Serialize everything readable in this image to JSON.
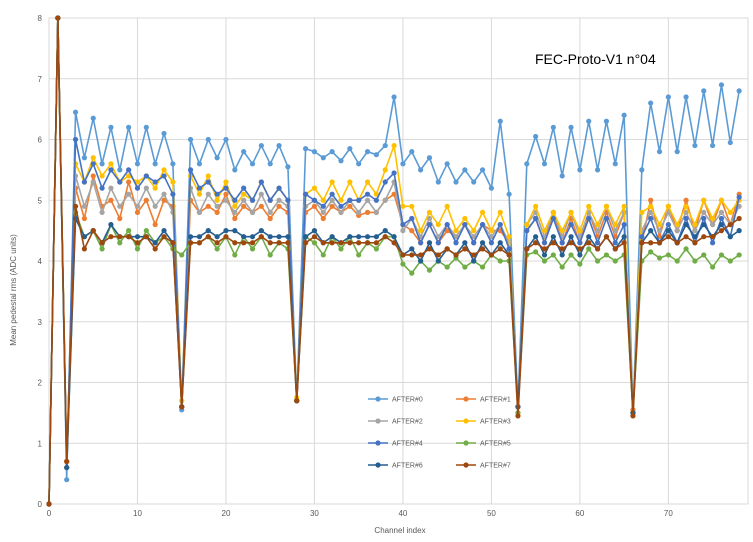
{
  "chart_data": {
    "type": "line",
    "title": "FEC-Proto-V1 n°04",
    "xlabel": "Channel index",
    "ylabel": "Mean pedestal rms (ADC units)",
    "xlim": [
      0,
      79
    ],
    "ylim": [
      0,
      8
    ],
    "xticks": [
      0,
      10,
      20,
      30,
      40,
      50,
      60,
      70
    ],
    "yticks": [
      0,
      1,
      2,
      3,
      4,
      5,
      6,
      7,
      8
    ],
    "grid": true,
    "legend_position": "bottom-center",
    "x": [
      0,
      1,
      2,
      3,
      4,
      5,
      6,
      7,
      8,
      9,
      10,
      11,
      12,
      13,
      14,
      15,
      16,
      17,
      18,
      19,
      20,
      21,
      22,
      23,
      24,
      25,
      26,
      27,
      28,
      29,
      30,
      31,
      32,
      33,
      34,
      35,
      36,
      37,
      38,
      39,
      40,
      41,
      42,
      43,
      44,
      45,
      46,
      47,
      48,
      49,
      50,
      51,
      52,
      53,
      54,
      55,
      56,
      57,
      58,
      59,
      60,
      61,
      62,
      63,
      64,
      65,
      66,
      67,
      68,
      69,
      70,
      71,
      72,
      73,
      74,
      75,
      76,
      77,
      78
    ],
    "series": [
      {
        "name": "AFTER#0",
        "color": "#5B9BD5",
        "values": [
          0,
          8,
          0.4,
          6.45,
          5.7,
          6.35,
          5.6,
          6.2,
          5.5,
          6.2,
          5.6,
          6.2,
          5.6,
          6.1,
          5.6,
          1.55,
          6.0,
          5.6,
          6.0,
          5.7,
          6.0,
          5.5,
          5.8,
          5.6,
          5.9,
          5.6,
          5.9,
          5.55,
          1.7,
          5.85,
          5.8,
          5.7,
          5.8,
          5.65,
          5.85,
          5.6,
          5.8,
          5.75,
          5.9,
          6.7,
          5.6,
          5.8,
          5.5,
          5.7,
          5.3,
          5.6,
          5.3,
          5.5,
          5.3,
          5.5,
          5.2,
          6.3,
          5.1,
          1.6,
          5.6,
          6.05,
          5.6,
          6.2,
          5.4,
          6.2,
          5.5,
          6.3,
          5.5,
          6.3,
          5.6,
          6.4,
          1.5,
          5.5,
          6.6,
          5.8,
          6.7,
          5.8,
          6.7,
          5.9,
          6.8,
          5.9,
          6.9,
          5.95,
          6.8
        ]
      },
      {
        "name": "AFTER#1",
        "color": "#ED7D31",
        "values": [
          0,
          8,
          0.7,
          5.2,
          4.7,
          5.4,
          4.9,
          5.0,
          4.7,
          5.3,
          4.8,
          5.0,
          4.6,
          5.0,
          4.9,
          1.6,
          5.0,
          4.8,
          4.9,
          4.8,
          5.1,
          4.7,
          4.9,
          4.8,
          4.9,
          4.7,
          4.9,
          4.8,
          1.7,
          4.8,
          4.9,
          4.7,
          4.9,
          4.8,
          4.9,
          4.75,
          4.8,
          4.8,
          5.0,
          5.1,
          4.6,
          4.5,
          4.3,
          4.6,
          4.3,
          4.5,
          4.4,
          4.6,
          4.3,
          4.6,
          4.5,
          4.5,
          4.3,
          1.6,
          4.5,
          4.7,
          4.3,
          4.8,
          4.3,
          4.7,
          4.3,
          4.8,
          4.4,
          4.8,
          4.4,
          4.8,
          1.55,
          4.3,
          5.0,
          4.4,
          4.9,
          4.5,
          5.0,
          4.5,
          5.0,
          4.6,
          5.0,
          4.6,
          5.1
        ]
      },
      {
        "name": "AFTER#2",
        "color": "#A5A5A5",
        "values": [
          0,
          8,
          0.7,
          5.4,
          4.9,
          5.3,
          4.8,
          5.2,
          4.9,
          5.1,
          4.9,
          5.2,
          4.9,
          5.1,
          4.8,
          1.6,
          5.2,
          4.8,
          5.1,
          4.9,
          5.0,
          4.8,
          5.0,
          4.8,
          5.1,
          4.8,
          5.0,
          4.9,
          1.7,
          4.9,
          5.0,
          4.8,
          5.0,
          4.8,
          5.0,
          4.8,
          5.0,
          4.8,
          5.0,
          5.3,
          4.5,
          4.7,
          4.4,
          4.7,
          4.4,
          4.6,
          4.4,
          4.6,
          4.4,
          4.6,
          4.4,
          4.6,
          4.3,
          1.6,
          4.6,
          4.8,
          4.4,
          4.8,
          4.4,
          4.8,
          4.4,
          4.8,
          4.5,
          4.9,
          4.5,
          4.8,
          1.5,
          4.5,
          4.8,
          4.5,
          4.8,
          4.5,
          4.8,
          4.5,
          4.8,
          4.6,
          4.8,
          4.6,
          4.9
        ]
      },
      {
        "name": "AFTER#3",
        "color": "#FFC000",
        "values": [
          0,
          8,
          0.7,
          5.6,
          5.3,
          5.7,
          5.4,
          5.6,
          5.3,
          5.4,
          5.3,
          5.4,
          5.2,
          5.5,
          5.3,
          1.7,
          5.4,
          5.1,
          5.4,
          5.0,
          5.3,
          4.9,
          5.1,
          5.0,
          5.3,
          5.0,
          5.2,
          5.0,
          1.75,
          5.1,
          5.2,
          5.0,
          5.3,
          5.0,
          5.3,
          5.0,
          5.3,
          5.1,
          5.5,
          5.9,
          4.9,
          4.9,
          4.5,
          4.8,
          4.6,
          4.9,
          4.5,
          4.7,
          4.5,
          4.8,
          4.5,
          4.8,
          4.4,
          1.5,
          4.6,
          4.9,
          4.5,
          4.8,
          4.5,
          4.8,
          4.5,
          4.9,
          4.6,
          4.9,
          4.6,
          4.9,
          1.5,
          4.8,
          4.9,
          4.6,
          4.9,
          4.6,
          4.9,
          4.6,
          5.0,
          4.7,
          5.0,
          4.8,
          5.0
        ]
      },
      {
        "name": "AFTER#4",
        "color": "#4472C4",
        "values": [
          0,
          8,
          0.6,
          6.0,
          5.3,
          5.6,
          5.2,
          5.5,
          5.3,
          5.5,
          5.2,
          5.4,
          5.3,
          5.4,
          5.1,
          1.6,
          5.5,
          5.2,
          5.3,
          5.1,
          5.2,
          5.0,
          5.2,
          5.0,
          5.3,
          5.0,
          5.2,
          5.0,
          1.7,
          5.1,
          5.0,
          4.9,
          5.1,
          4.9,
          5.0,
          5.0,
          5.1,
          5.0,
          5.3,
          5.45,
          4.6,
          4.7,
          4.3,
          4.6,
          4.3,
          4.6,
          4.3,
          4.6,
          4.3,
          4.6,
          4.3,
          4.6,
          4.2,
          1.6,
          4.5,
          4.7,
          4.3,
          4.7,
          4.3,
          4.6,
          4.3,
          4.7,
          4.3,
          4.7,
          4.3,
          4.6,
          1.5,
          4.4,
          4.7,
          4.3,
          4.6,
          4.3,
          4.7,
          4.3,
          4.7,
          4.3,
          4.7,
          4.4,
          5.05
        ]
      },
      {
        "name": "AFTER#5",
        "color": "#70AD47",
        "values": [
          0,
          8,
          0.6,
          4.8,
          4.4,
          4.5,
          4.2,
          4.6,
          4.3,
          4.5,
          4.2,
          4.5,
          4.3,
          4.4,
          4.2,
          4.1,
          4.3,
          4.3,
          4.4,
          4.2,
          4.4,
          4.1,
          4.4,
          4.2,
          4.4,
          4.1,
          4.3,
          4.2,
          1.7,
          4.4,
          4.3,
          4.1,
          4.4,
          4.2,
          4.4,
          4.1,
          4.3,
          4.2,
          4.4,
          4.4,
          3.95,
          3.8,
          4.0,
          3.85,
          4.0,
          3.9,
          4.05,
          3.9,
          4.0,
          3.9,
          4.1,
          4.0,
          4.0,
          1.5,
          4.1,
          4.15,
          4.0,
          4.1,
          3.9,
          4.1,
          3.95,
          4.2,
          4.0,
          4.1,
          4.0,
          4.1,
          1.5,
          4.0,
          4.15,
          4.05,
          4.1,
          4.0,
          4.2,
          4.0,
          4.1,
          3.9,
          4.1,
          4.0,
          4.1
        ]
      },
      {
        "name": "AFTER#6",
        "color": "#255E91",
        "values": [
          0,
          8,
          0.6,
          4.7,
          4.4,
          4.5,
          4.3,
          4.6,
          4.4,
          4.4,
          4.4,
          4.4,
          4.3,
          4.5,
          4.3,
          1.6,
          4.4,
          4.4,
          4.5,
          4.4,
          4.5,
          4.5,
          4.4,
          4.4,
          4.5,
          4.4,
          4.4,
          4.4,
          1.7,
          4.4,
          4.5,
          4.3,
          4.4,
          4.3,
          4.4,
          4.4,
          4.4,
          4.4,
          4.5,
          4.4,
          4.1,
          4.2,
          4.0,
          4.3,
          4.0,
          4.2,
          4.1,
          4.3,
          4.0,
          4.3,
          4.1,
          4.3,
          4.1,
          1.6,
          4.2,
          4.4,
          4.1,
          4.4,
          4.1,
          4.4,
          4.1,
          4.4,
          4.2,
          4.4,
          4.2,
          4.4,
          1.5,
          4.3,
          4.5,
          4.3,
          4.5,
          4.3,
          4.6,
          4.4,
          4.6,
          4.4,
          4.6,
          4.4,
          4.5
        ]
      },
      {
        "name": "AFTER#7",
        "color": "#9E480E",
        "values": [
          0,
          8,
          0.7,
          4.9,
          4.2,
          4.5,
          4.3,
          4.4,
          4.4,
          4.4,
          4.3,
          4.4,
          4.2,
          4.4,
          4.3,
          1.6,
          4.3,
          4.3,
          4.4,
          4.3,
          4.4,
          4.3,
          4.3,
          4.3,
          4.4,
          4.3,
          4.3,
          4.3,
          1.7,
          4.3,
          4.4,
          4.3,
          4.3,
          4.3,
          4.3,
          4.3,
          4.3,
          4.3,
          4.4,
          4.3,
          4.1,
          4.1,
          4.1,
          4.2,
          4.1,
          4.2,
          4.1,
          4.2,
          4.1,
          4.2,
          4.1,
          4.2,
          4.1,
          1.45,
          4.2,
          4.3,
          4.2,
          4.3,
          4.2,
          4.3,
          4.2,
          4.3,
          4.2,
          4.4,
          4.2,
          4.3,
          1.45,
          4.3,
          4.3,
          4.3,
          4.4,
          4.3,
          4.4,
          4.3,
          4.4,
          4.4,
          4.5,
          4.6,
          4.7
        ]
      }
    ]
  }
}
